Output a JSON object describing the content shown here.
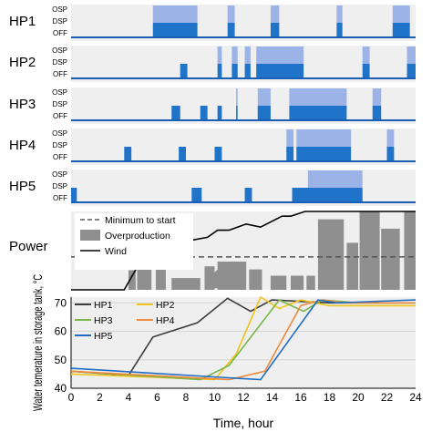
{
  "chart_data": [
    {
      "type": "step",
      "title": "",
      "x_range": [
        0,
        24
      ],
      "state_labels": [
        "OSP",
        "DSP",
        "OFF"
      ],
      "colors": {
        "osp": "#9bb3e6",
        "dsp": "#1f73c8",
        "off_line": "#1a5fb4",
        "background": "#efefef"
      },
      "units": [
        {
          "name": "HP1",
          "osp": [
            [
              5.7,
              8.8
            ],
            [
              10.9,
              11.4
            ],
            [
              13.9,
              14.5
            ],
            [
              18.5,
              18.9
            ],
            [
              22.4,
              23.6
            ]
          ],
          "dsp": [
            [
              5.7,
              8.8
            ],
            [
              10.9,
              11.4
            ],
            [
              13.9,
              14.5
            ],
            [
              18.5,
              18.9
            ],
            [
              22.4,
              23.6
            ]
          ]
        },
        {
          "name": "HP2",
          "osp": [
            [
              10.2,
              10.5
            ],
            [
              11.2,
              11.6
            ],
            [
              12.1,
              12.5
            ],
            [
              12.9,
              16.2
            ],
            [
              20.3,
              20.8
            ],
            [
              23.4,
              24
            ]
          ],
          "dsp": [
            [
              7.6,
              8.1
            ],
            [
              10.2,
              10.5
            ],
            [
              11.2,
              11.6
            ],
            [
              12.1,
              12.5
            ],
            [
              12.9,
              16.2
            ],
            [
              20.3,
              20.8
            ],
            [
              23.4,
              24
            ]
          ]
        },
        {
          "name": "HP3",
          "osp": [
            [
              11.5,
              11.6
            ],
            [
              13.0,
              13.9
            ],
            [
              15.2,
              19.2
            ],
            [
              21.0,
              21.6
            ],
            [
              24.0,
              24.0
            ]
          ],
          "dsp": [
            [
              7.0,
              7.6
            ],
            [
              9.0,
              9.5
            ],
            [
              10.2,
              10.5
            ],
            [
              11.5,
              11.6
            ],
            [
              13.0,
              13.9
            ],
            [
              15.2,
              19.2
            ],
            [
              21.0,
              21.6
            ]
          ]
        },
        {
          "name": "HP4",
          "osp": [
            [
              15.0,
              15.5
            ],
            [
              15.7,
              19.5
            ],
            [
              22.0,
              22.5
            ],
            [
              24.3,
              24.7
            ]
          ],
          "dsp": [
            [
              3.7,
              4.2
            ],
            [
              7.5,
              8.0
            ],
            [
              10.0,
              10.5
            ],
            [
              15.0,
              15.5
            ],
            [
              15.7,
              19.5
            ],
            [
              22.0,
              22.5
            ],
            [
              24.3,
              24.7
            ]
          ]
        },
        {
          "name": "HP5",
          "osp": [
            [
              16.5,
              20.3
            ],
            [
              24.4,
              25.0
            ]
          ],
          "dsp": [
            [
              0.0,
              0.4
            ],
            [
              8.4,
              9.1
            ],
            [
              12.1,
              12.6
            ],
            [
              15.4,
              20.3
            ],
            [
              24.4,
              25.0
            ]
          ]
        }
      ]
    },
    {
      "type": "area",
      "title": "Power",
      "x_range": [
        0,
        24
      ],
      "series": [
        {
          "name": "Minimum to start",
          "style": "dashed",
          "color": "#555555"
        },
        {
          "name": "Overproduction",
          "color": "#8f8f8f"
        },
        {
          "name": "Wind",
          "color": "#000000"
        }
      ],
      "wind": {
        "x": [
          0,
          3.7,
          4.7,
          6,
          8,
          9.5,
          10.2,
          11,
          12.2,
          13.2,
          14.7,
          15.3,
          16.3,
          24
        ],
        "y": [
          0,
          0,
          0.32,
          0.52,
          0.62,
          0.67,
          0.76,
          0.76,
          0.84,
          0.8,
          0.94,
          0.94,
          1.0,
          1.0
        ]
      },
      "minimum_to_start": 0.42,
      "overproduction_blocks": [
        [
          20.1,
          21.5
        ],
        [
          21.6,
          22.9
        ],
        [
          23.2,
          24.0
        ]
      ]
    },
    {
      "type": "line",
      "title": "",
      "xlabel": "Time, hour",
      "ylabel": "Water temerature in storage tank, °C",
      "xlim": [
        0,
        24
      ],
      "ylim": [
        40,
        72
      ],
      "x_ticks": [
        0,
        2,
        4,
        6,
        8,
        10,
        12,
        14,
        16,
        18,
        20,
        22,
        24
      ],
      "y_ticks": [
        40,
        50,
        60,
        70
      ],
      "legend_position": "top-left",
      "series": [
        {
          "name": "HP1",
          "color": "#3b3b3b",
          "x": [
            0,
            4,
            5.7,
            8.8,
            10.9,
            12.5,
            14,
            18,
            24
          ],
          "y": [
            46,
            44.5,
            58,
            63,
            71.6,
            67,
            71,
            70,
            70
          ]
        },
        {
          "name": "HP2",
          "color": "#f0c419",
          "x": [
            0,
            10,
            11.5,
            13.2,
            14.5,
            16,
            18,
            24
          ],
          "y": [
            45,
            43,
            52,
            72,
            68,
            71,
            69,
            69
          ]
        },
        {
          "name": "HP3",
          "color": "#7ab648",
          "x": [
            0,
            9,
            11,
            14.5,
            16.2,
            17.5,
            20,
            24
          ],
          "y": [
            46,
            43,
            48,
            71,
            67,
            71,
            70,
            70
          ]
        },
        {
          "name": "HP4",
          "color": "#f08a3c",
          "x": [
            0,
            11,
            13.5,
            16,
            17.5,
            19,
            24
          ],
          "y": [
            46,
            43,
            46,
            69,
            71,
            70,
            70
          ]
        },
        {
          "name": "HP5",
          "color": "#1f6dc4",
          "x": [
            0,
            13.2,
            17.2,
            18.5,
            24
          ],
          "y": [
            47,
            43,
            71,
            70,
            71
          ]
        }
      ]
    }
  ]
}
